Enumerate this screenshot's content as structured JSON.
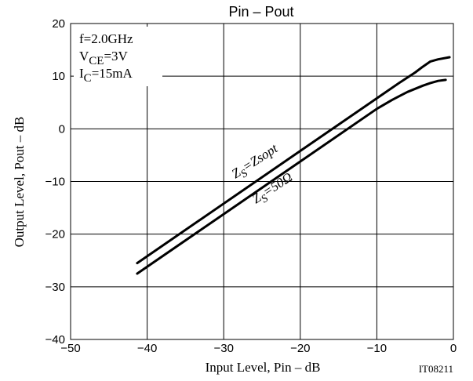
{
  "chart_data": {
    "type": "line",
    "title": "Pin  –  Pout",
    "xlabel": "Input Level, Pin  –  dB",
    "ylabel": "Output Level, Pout  –  dB",
    "xlim": [
      -50,
      0
    ],
    "ylim": [
      -40,
      20
    ],
    "x_ticks": [
      -50,
      -40,
      -30,
      -20,
      -10,
      0
    ],
    "y_ticks": [
      -40,
      -30,
      -20,
      -10,
      0,
      10,
      20
    ],
    "x_tick_labels": [
      "−50",
      "−40",
      "−30",
      "−20",
      "−10",
      "0"
    ],
    "y_tick_labels": [
      "−40",
      "−30",
      "−20",
      "−10",
      "0",
      "10",
      "20"
    ],
    "grid": true,
    "conditions": [
      {
        "main": "f=2.0GHz",
        "sub": ""
      },
      {
        "main": "V",
        "sub": "CE",
        "tail": "=3V"
      },
      {
        "main": "I",
        "sub": "C",
        "tail": "=15mA"
      }
    ],
    "figure_id": "IT08211",
    "series": [
      {
        "name": "ZS=Zsopt",
        "label_main": "Z",
        "label_sub": "S",
        "label_tail": "=Zsopt",
        "x": [
          -41.3,
          -30,
          -20,
          -10,
          -7,
          -5,
          -4,
          -3,
          -2,
          -0.5
        ],
        "y": [
          -25.5,
          -14.2,
          -4.2,
          5.8,
          8.8,
          10.7,
          11.8,
          12.8,
          13.2,
          13.6
        ]
      },
      {
        "name": "ZS=50Ω",
        "label_main": "Z",
        "label_sub": "S",
        "label_tail": "=50Ω",
        "x": [
          -41.3,
          -30,
          -20,
          -10,
          -8,
          -6,
          -4,
          -3,
          -2,
          -1
        ],
        "y": [
          -27.5,
          -16.2,
          -6.2,
          3.8,
          5.5,
          7.0,
          8.2,
          8.7,
          9.1,
          9.3
        ]
      }
    ]
  }
}
